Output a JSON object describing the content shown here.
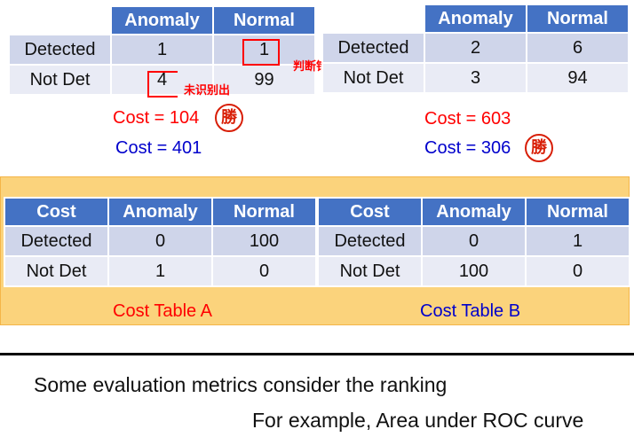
{
  "table1": {
    "header": [
      "",
      "Anomaly",
      "Normal"
    ],
    "rows": [
      {
        "label": "Detected",
        "anomaly": "1",
        "normal": "1"
      },
      {
        "label": "Not Det",
        "anomaly": "4",
        "normal": "99"
      }
    ],
    "note_misjudged": "判断错误",
    "note_missed": "未识别出",
    "cost_a": "Cost = 104",
    "cost_b": "Cost = 401",
    "stamp": "勝"
  },
  "table2": {
    "header": [
      "",
      "Anomaly",
      "Normal"
    ],
    "rows": [
      {
        "label": "Detected",
        "anomaly": "2",
        "normal": "6"
      },
      {
        "label": "Not Det",
        "anomaly": "3",
        "normal": "94"
      }
    ],
    "cost_a": "Cost = 603",
    "cost_b": "Cost = 306",
    "stamp": "勝"
  },
  "cost_table_a": {
    "header": [
      "Cost",
      "Anomaly",
      "Normal"
    ],
    "rows": [
      {
        "label": "Detected",
        "anomaly": "0",
        "normal": "100"
      },
      {
        "label": "Not Det",
        "anomaly": "1",
        "normal": "0"
      }
    ],
    "caption": "Cost Table A"
  },
  "cost_table_b": {
    "header": [
      "Cost",
      "Anomaly",
      "Normal"
    ],
    "rows": [
      {
        "label": "Detected",
        "anomaly": "0",
        "normal": "1"
      },
      {
        "label": "Not Det",
        "anomaly": "100",
        "normal": "0"
      }
    ],
    "caption": "Cost Table B"
  },
  "bottom": {
    "line1": "Some evaluation metrics consider the ranking",
    "line2": "For example, Area under ROC curve"
  },
  "colors": {
    "header_blue": "#4472c4",
    "row_dark": "#cfd5ea",
    "row_light": "#e9ebf5",
    "panel_orange": "#fbd37c",
    "cost_red": "#ff0000",
    "cost_blue": "#0000cc"
  }
}
